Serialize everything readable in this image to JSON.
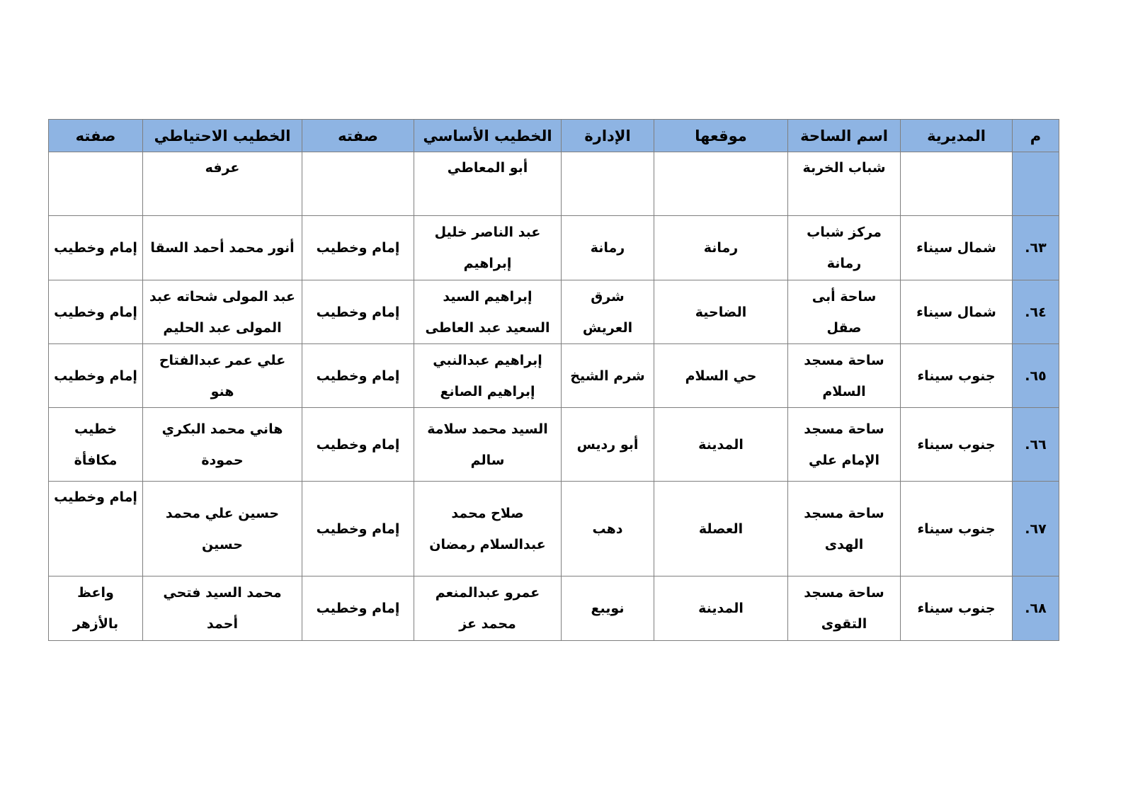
{
  "table": {
    "headers": [
      "م",
      "المديرية",
      "اسم الساحة",
      "موقعها",
      "الإدارة",
      "الخطيب الأساسي",
      "صفته",
      "الخطيب الاحتياطي",
      "صفته"
    ],
    "rows": [
      [
        "",
        "",
        "شباب الخربة",
        "",
        "",
        "أبو المعاطي",
        "",
        "عرفه",
        ""
      ],
      [
        "٦٣.",
        "شمال سيناء",
        "مركز شباب رمانة",
        "رمانة",
        "رمانة",
        "عبد الناصر خليل إبراهيم",
        "إمام وخطيب",
        "أنور محمد أحمد السقا",
        "إمام وخطيب"
      ],
      [
        "٦٤.",
        "شمال سيناء",
        "ساحة  أبى صقل",
        "الضاحية",
        "شرق العريش",
        "إبراهيم السيد السعيد عبد العاطى",
        "إمام وخطيب",
        "عبد المولى شحاته عبد المولى عبد الحليم",
        "إمام وخطيب"
      ],
      [
        "٦٥.",
        "جنوب سيناء",
        "ساحة مسجد السلام",
        "حي السلام",
        "شرم الشيخ",
        "إبراهيم عبدالنبي إبراهيم  الصانع",
        "إمام وخطيب",
        "علي عمر عبدالفتاح هنو",
        "إمام وخطيب"
      ],
      [
        "٦٦.",
        "جنوب  سيناء",
        "ساحة مسجد الإمام علي",
        "المدينة",
        "أبو رديس",
        "السيد محمد سلامة سالم",
        "إمام وخطيب",
        "هاني محمد البكري حمودة",
        "خطيب مكافأة"
      ],
      [
        "٦٧.",
        "جنوب  سيناء",
        "ساحة مسجد الهدى",
        "العصلة",
        "دهب",
        "صلاح محمد عبدالسلام رمضان",
        "إمام وخطيب",
        "حسين علي محمد حسين",
        "إمام وخطيب"
      ],
      [
        "٦٨.",
        "جنوب  سيناء",
        "ساحة مسجد التقوى",
        "المدينة",
        "نويبع",
        "عمرو عبدالمنعم محمد عز",
        "إمام وخطيب",
        "محمد السيد فتحي أحمد",
        "واعظ بالأزهر"
      ]
    ]
  },
  "colors": {
    "header_bg": "#8eb4e3",
    "border": "#7f7f7f"
  }
}
